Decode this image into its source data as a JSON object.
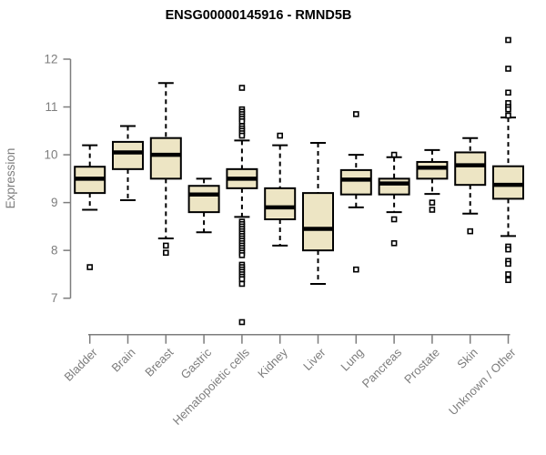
{
  "title": "ENSG00000145916 - RMND5B",
  "chart_data": {
    "type": "boxplot",
    "title": "ENSG00000145916 - RMND5B",
    "ylabel": "Expression",
    "xlabel": "",
    "ylim": [
      7,
      12
    ],
    "yticks": [
      7,
      8,
      9,
      10,
      11,
      12
    ],
    "grid": false,
    "legend": "none",
    "categories": [
      "Bladder",
      "Brain",
      "Breast",
      "Gastric",
      "Hematopoietic cells",
      "Kidney",
      "Liver",
      "Lung",
      "Pancreas",
      "Prostate",
      "Skin",
      "Unknown / Other"
    ],
    "boxes": [
      {
        "category": "Bladder",
        "low": 8.85,
        "q1": 9.2,
        "median": 9.5,
        "q3": 9.75,
        "high": 10.2,
        "outliers": [
          7.65
        ]
      },
      {
        "category": "Brain",
        "low": 9.05,
        "q1": 9.7,
        "median": 10.05,
        "q3": 10.27,
        "high": 10.6,
        "outliers": []
      },
      {
        "category": "Breast",
        "low": 8.25,
        "q1": 9.5,
        "median": 10.0,
        "q3": 10.35,
        "high": 11.5,
        "outliers": [
          8.1,
          7.95
        ]
      },
      {
        "category": "Gastric",
        "low": 8.38,
        "q1": 8.8,
        "median": 9.17,
        "q3": 9.35,
        "high": 9.5,
        "outliers": []
      },
      {
        "category": "Hematopoietic cells",
        "low": 8.7,
        "q1": 9.3,
        "median": 9.5,
        "q3": 9.7,
        "high": 10.3,
        "outliers": [
          11.4,
          10.95,
          10.9,
          10.85,
          10.8,
          10.75,
          10.7,
          10.6,
          10.55,
          10.5,
          10.45,
          10.4,
          8.6,
          8.55,
          8.5,
          8.45,
          8.4,
          8.35,
          8.3,
          8.25,
          8.2,
          8.15,
          8.1,
          8.05,
          8.0,
          7.95,
          7.9,
          7.7,
          7.65,
          7.6,
          7.55,
          7.5,
          7.45,
          7.4,
          7.3,
          6.5
        ]
      },
      {
        "category": "Kidney",
        "low": 8.1,
        "q1": 8.65,
        "median": 8.9,
        "q3": 9.3,
        "high": 10.2,
        "outliers": [
          10.4
        ]
      },
      {
        "category": "Liver",
        "low": 7.3,
        "q1": 8.0,
        "median": 8.45,
        "q3": 9.2,
        "high": 10.25,
        "outliers": []
      },
      {
        "category": "Lung",
        "low": 8.9,
        "q1": 9.17,
        "median": 9.48,
        "q3": 9.68,
        "high": 10.0,
        "outliers": [
          10.85,
          7.6
        ]
      },
      {
        "category": "Pancreas",
        "low": 8.8,
        "q1": 9.17,
        "median": 9.4,
        "q3": 9.5,
        "high": 9.95,
        "outliers": [
          10.0,
          8.65,
          8.15
        ]
      },
      {
        "category": "Prostate",
        "low": 9.18,
        "q1": 9.5,
        "median": 9.73,
        "q3": 9.85,
        "high": 10.1,
        "outliers": [
          9.0,
          8.85
        ]
      },
      {
        "category": "Skin",
        "low": 8.77,
        "q1": 9.37,
        "median": 9.78,
        "q3": 10.05,
        "high": 10.35,
        "outliers": [
          8.4
        ]
      },
      {
        "category": "Unknown / Other",
        "low": 8.3,
        "q1": 9.08,
        "median": 9.37,
        "q3": 9.76,
        "high": 10.78,
        "outliers": [
          12.4,
          11.8,
          11.3,
          11.08,
          11.0,
          10.95,
          10.82,
          8.08,
          8.02,
          7.78,
          7.72,
          7.5,
          7.38
        ]
      }
    ],
    "colors": {
      "box_fill": "#EDE5C4",
      "box_border": "#000000",
      "median": "#000000",
      "whisker": "#000000",
      "outlier": "#000000",
      "axis": "#7d7d7d",
      "label": "#7d7d7d",
      "title": "#000000",
      "background": "#ffffff"
    }
  }
}
